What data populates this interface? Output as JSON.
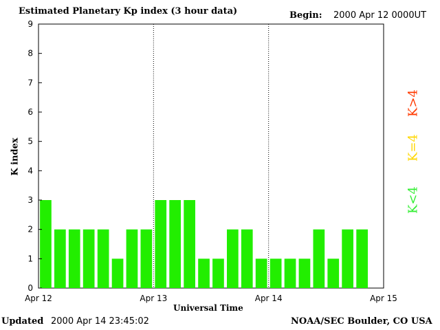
{
  "chart_data": {
    "type": "bar",
    "title": "Estimated Planetary Kp index (3 hour data)",
    "begin_label": "Begin:",
    "begin_value": "2000 Apr 12 0000UT",
    "xlabel": "Universal Time",
    "ylabel": "K index",
    "ylim": [
      0,
      9
    ],
    "yticks": [
      "0",
      "1",
      "2",
      "3",
      "4",
      "5",
      "6",
      "7",
      "8",
      "9"
    ],
    "xticks": [
      "Apr 12",
      "Apr 13",
      "Apr 14",
      "Apr 15"
    ],
    "intervals_per_day": 8,
    "values": [
      3,
      2,
      2,
      2,
      2,
      1,
      2,
      2,
      3,
      3,
      3,
      1,
      1,
      2,
      2,
      1,
      1,
      1,
      1,
      2,
      1,
      2,
      2
    ],
    "bar_color": "#22ee00",
    "day_dividers": "dotted",
    "legend": [
      "K>4",
      "K=4",
      "K<4"
    ],
    "legend_colors": {
      "high": "#ff3a00",
      "equal": "#ffd700",
      "low": "#33ee33"
    }
  },
  "footer": {
    "updated_label": "Updated",
    "updated_value": "2000 Apr 14 23:45:02",
    "credit": "NOAA/SEC Boulder, CO USA"
  }
}
